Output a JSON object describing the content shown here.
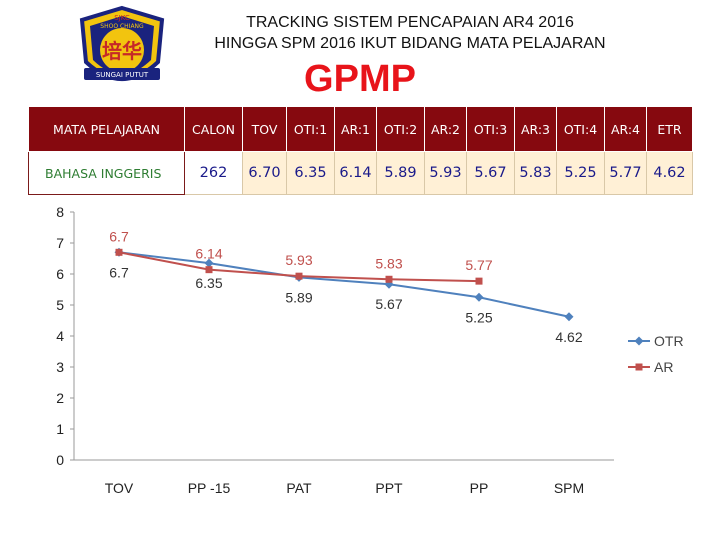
{
  "logo": {
    "top_text": "SJKC",
    "name": "SHOO CHIANG",
    "emblem": "培华",
    "bottom_text": "SUNGAI PUTUT"
  },
  "header": {
    "title_line1": "TRACKING SISTEM PENCAPAIAN AR4 2016",
    "title_line2": "HINGGA SPM 2016 IKUT BIDANG MATA PELAJARAN",
    "subject_code": "GPMP"
  },
  "colors": {
    "header_bg": "#86090f",
    "row_bg": "#fff0d6",
    "otr": "#4f81bd",
    "ar": "#c0504d",
    "title_red": "#e8141a"
  },
  "table": {
    "columns": [
      "MATA PELAJARAN",
      "CALON",
      "TOV",
      "OTI:1",
      "AR:1",
      "OTI:2",
      "AR:2",
      "OTI:3",
      "AR:3",
      "OTI:4",
      "AR:4",
      "ETR"
    ],
    "row": [
      "BAHASA INGGERIS",
      "262",
      "6.70",
      "6.35",
      "6.14",
      "5.89",
      "5.93",
      "5.67",
      "5.83",
      "5.25",
      "5.77",
      "4.62"
    ]
  },
  "chart_data": {
    "type": "line",
    "categories": [
      "TOV",
      "PP -15",
      "PAT",
      "PPT",
      "PP",
      "SPM"
    ],
    "ylim": [
      0,
      8
    ],
    "yticks": [
      "0",
      "1",
      "2",
      "3",
      "4",
      "5",
      "6",
      "7",
      "8"
    ],
    "grid": false,
    "legend_position": "right",
    "series": [
      {
        "name": "OTR",
        "color": "#4f81bd",
        "marker": "diamond",
        "values": [
          6.7,
          6.35,
          5.89,
          5.67,
          5.25,
          4.62
        ],
        "labels": [
          "6.7",
          "6.35",
          "5.89",
          "5.67",
          "5.25",
          "4.62"
        ]
      },
      {
        "name": "AR",
        "color": "#c0504d",
        "marker": "square",
        "values": [
          6.7,
          6.14,
          5.93,
          5.83,
          5.77,
          null
        ],
        "labels": [
          "6.7",
          "6.14",
          "5.93",
          "5.83",
          "5.77",
          null
        ]
      }
    ]
  }
}
